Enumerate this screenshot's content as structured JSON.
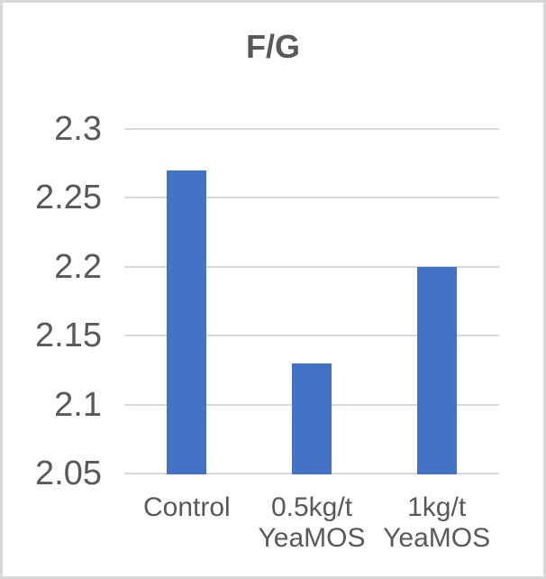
{
  "chart_data": {
    "type": "bar",
    "title": "F/G",
    "categories": [
      "Control",
      "0.5kg/t\nYeaMOS",
      "1kg/t\nYeaMOS"
    ],
    "values": [
      2.27,
      2.13,
      2.2
    ],
    "xlabel": "",
    "ylabel": "",
    "ylim": [
      2.05,
      2.3
    ],
    "ytick_step": 0.05,
    "ytick_labels": [
      "2.3",
      "2.25",
      "2.2",
      "2.15",
      "2.1",
      "2.05"
    ],
    "grid": true,
    "legend": false,
    "bar_color": "#4472C4",
    "text_color": "#595959",
    "gridline_color": "#D9D9D9",
    "background_color": "#FFFFFF",
    "frame_border_color": "#D8D8D8"
  }
}
